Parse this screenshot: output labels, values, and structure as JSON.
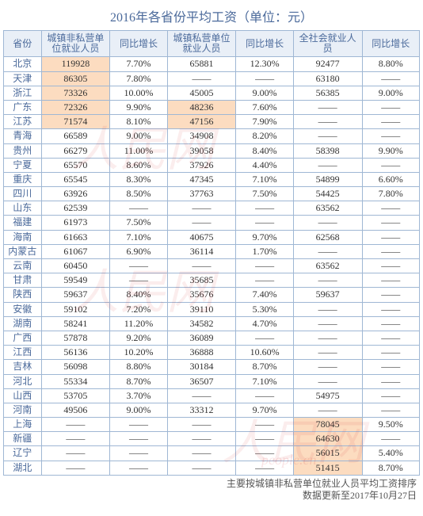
{
  "title": "2016年各省份平均工资（单位：元）",
  "columns": [
    "省份",
    "城镇非私营单位就业人员",
    "同比增长",
    "城镇私营单位就业人员",
    "同比增长",
    "全社会就业人员",
    "同比增长"
  ],
  "footnote": "主要按城镇非私营单位就业人员平均工资排序\n数据更新至2017年10月27日",
  "rows": [
    {
      "p": "北京",
      "v1": "119928",
      "h1": true,
      "g1": "7.70%",
      "v2": "65881",
      "h2": false,
      "g2": "12.30%",
      "v3": "92477",
      "h3": false,
      "g3": "8.80%"
    },
    {
      "p": "天津",
      "v1": "86305",
      "h1": true,
      "g1": "7.80%",
      "v2": "——",
      "h2": false,
      "g2": "——",
      "v3": "63180",
      "h3": false,
      "g3": "——"
    },
    {
      "p": "浙江",
      "v1": "73326",
      "h1": true,
      "g1": "10.00%",
      "v2": "45005",
      "h2": false,
      "g2": "9.00%",
      "v3": "56385",
      "h3": false,
      "g3": "9.00%"
    },
    {
      "p": "广东",
      "v1": "72326",
      "h1": true,
      "g1": "9.90%",
      "v2": "48236",
      "h2": true,
      "g2": "7.60%",
      "v3": "——",
      "h3": false,
      "g3": "——"
    },
    {
      "p": "江苏",
      "v1": "71574",
      "h1": true,
      "g1": "8.10%",
      "v2": "47156",
      "h2": true,
      "g2": "7.90%",
      "v3": "——",
      "h3": false,
      "g3": "——"
    },
    {
      "p": "青海",
      "v1": "66589",
      "h1": false,
      "g1": "9.00%",
      "v2": "34908",
      "h2": false,
      "g2": "8.20%",
      "v3": "——",
      "h3": false,
      "g3": "——"
    },
    {
      "p": "贵州",
      "v1": "66279",
      "h1": false,
      "g1": "11.00%",
      "v2": "39058",
      "h2": false,
      "g2": "8.40%",
      "v3": "58398",
      "h3": false,
      "g3": "9.90%"
    },
    {
      "p": "宁夏",
      "v1": "65570",
      "h1": false,
      "g1": "8.60%",
      "v2": "37926",
      "h2": false,
      "g2": "4.40%",
      "v3": "——",
      "h3": false,
      "g3": "——"
    },
    {
      "p": "重庆",
      "v1": "65545",
      "h1": false,
      "g1": "8.30%",
      "v2": "47345",
      "h2": false,
      "g2": "7.10%",
      "v3": "54899",
      "h3": false,
      "g3": "6.60%"
    },
    {
      "p": "四川",
      "v1": "63926",
      "h1": false,
      "g1": "8.50%",
      "v2": "37763",
      "h2": false,
      "g2": "7.50%",
      "v3": "54425",
      "h3": false,
      "g3": "7.80%"
    },
    {
      "p": "山东",
      "v1": "62539",
      "h1": false,
      "g1": "——",
      "v2": "——",
      "h2": false,
      "g2": "——",
      "v3": "63562",
      "h3": false,
      "g3": "——"
    },
    {
      "p": "福建",
      "v1": "61973",
      "h1": false,
      "g1": "7.50%",
      "v2": "——",
      "h2": false,
      "g2": "——",
      "v3": "——",
      "h3": false,
      "g3": "——"
    },
    {
      "p": "海南",
      "v1": "61663",
      "h1": false,
      "g1": "7.10%",
      "v2": "40675",
      "h2": false,
      "g2": "9.70%",
      "v3": "62568",
      "h3": false,
      "g3": "——"
    },
    {
      "p": "内蒙古",
      "v1": "61067",
      "h1": false,
      "g1": "6.90%",
      "v2": "36114",
      "h2": false,
      "g2": "1.70%",
      "v3": "——",
      "h3": false,
      "g3": "——"
    },
    {
      "p": "云南",
      "v1": "60450",
      "h1": false,
      "g1": "——",
      "v2": "——",
      "h2": false,
      "g2": "——",
      "v3": "63562",
      "h3": false,
      "g3": "——"
    },
    {
      "p": "甘肃",
      "v1": "59549",
      "h1": false,
      "g1": "——",
      "v2": "35685",
      "h2": false,
      "g2": "——",
      "v3": "——",
      "h3": false,
      "g3": "——"
    },
    {
      "p": "陕西",
      "v1": "59637",
      "h1": false,
      "g1": "8.40%",
      "v2": "35676",
      "h2": false,
      "g2": "7.40%",
      "v3": "59637",
      "h3": false,
      "g3": "——"
    },
    {
      "p": "安徽",
      "v1": "59102",
      "h1": false,
      "g1": "7.20%",
      "v2": "39110",
      "h2": false,
      "g2": "5.30%",
      "v3": "——",
      "h3": false,
      "g3": "——"
    },
    {
      "p": "湖南",
      "v1": "58241",
      "h1": false,
      "g1": "11.20%",
      "v2": "34582",
      "h2": false,
      "g2": "4.70%",
      "v3": "——",
      "h3": false,
      "g3": "——"
    },
    {
      "p": "广西",
      "v1": "57878",
      "h1": false,
      "g1": "9.20%",
      "v2": "36089",
      "h2": false,
      "g2": "——",
      "v3": "——",
      "h3": false,
      "g3": "——"
    },
    {
      "p": "江西",
      "v1": "56136",
      "h1": false,
      "g1": "10.20%",
      "v2": "36888",
      "h2": false,
      "g2": "10.60%",
      "v3": "——",
      "h3": false,
      "g3": "——"
    },
    {
      "p": "吉林",
      "v1": "56098",
      "h1": false,
      "g1": "8.80%",
      "v2": "30184",
      "h2": false,
      "g2": "8.70%",
      "v3": "——",
      "h3": false,
      "g3": "——"
    },
    {
      "p": "河北",
      "v1": "55334",
      "h1": false,
      "g1": "8.70%",
      "v2": "36507",
      "h2": false,
      "g2": "7.10%",
      "v3": "——",
      "h3": false,
      "g3": "——"
    },
    {
      "p": "山西",
      "v1": "53705",
      "h1": false,
      "g1": "3.70%",
      "v2": "——",
      "h2": false,
      "g2": "——",
      "v3": "54975",
      "h3": false,
      "g3": "——"
    },
    {
      "p": "河南",
      "v1": "49506",
      "h1": false,
      "g1": "9.00%",
      "v2": "33312",
      "h2": false,
      "g2": "9.70%",
      "v3": "——",
      "h3": false,
      "g3": "——"
    },
    {
      "p": "上海",
      "v1": "——",
      "h1": false,
      "g1": "——",
      "v2": "——",
      "h2": false,
      "g2": "——",
      "v3": "78045",
      "h3": true,
      "g3": "9.50%"
    },
    {
      "p": "新疆",
      "v1": "——",
      "h1": false,
      "g1": "——",
      "v2": "——",
      "h2": false,
      "g2": "——",
      "v3": "64630",
      "h3": true,
      "g3": "——"
    },
    {
      "p": "辽宁",
      "v1": "——",
      "h1": false,
      "g1": "——",
      "v2": "——",
      "h2": false,
      "g2": "——",
      "v3": "56015",
      "h3": true,
      "g3": "5.40%"
    },
    {
      "p": "湖北",
      "v1": "——",
      "h1": false,
      "g1": "——",
      "v2": "——",
      "h2": false,
      "g2": "——",
      "v3": "51415",
      "h3": true,
      "g3": "8.70%"
    }
  ],
  "highlight_color": "#fcdcc0",
  "border_color": "#9fb7d4",
  "header_bg": "#e9eff7"
}
